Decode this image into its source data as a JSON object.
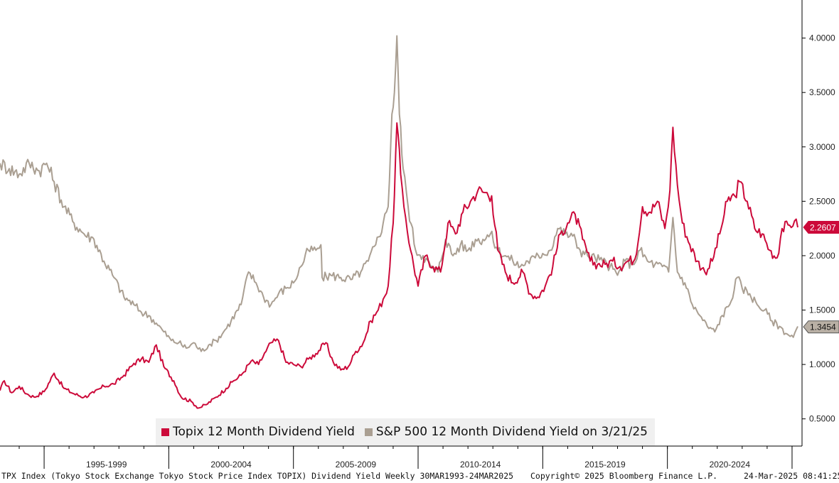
{
  "chart_data": {
    "type": "line",
    "ylim": [
      0.25,
      4.35
    ],
    "yticks": [
      "0.5000",
      "1.0000",
      "1.5000",
      "2.0000",
      "2.5000",
      "3.0000",
      "3.5000",
      "4.0000"
    ],
    "xlim": [
      1993.23,
      2025.4
    ],
    "x_groups": [
      {
        "label": "1995-1999",
        "start": 1995,
        "end": 2000
      },
      {
        "label": "2000-2004",
        "start": 2000,
        "end": 2005
      },
      {
        "label": "2005-2009",
        "start": 2005,
        "end": 2010
      },
      {
        "label": "2010-2014",
        "start": 2010,
        "end": 2015
      },
      {
        "label": "2015-2019",
        "start": 2015,
        "end": 2020
      },
      {
        "label": "2020-2024",
        "start": 2020,
        "end": 2025
      }
    ],
    "grid": false,
    "legend_position": "bottom-center",
    "series": [
      {
        "name": "Topix 12 Month Dividend Yield",
        "color": "#cc0a3a",
        "last_value_label": "2.2607",
        "points": [
          [
            1993.23,
            0.76
          ],
          [
            1993.4,
            0.85
          ],
          [
            1993.7,
            0.74
          ],
          [
            1994.0,
            0.8
          ],
          [
            1994.3,
            0.73
          ],
          [
            1994.6,
            0.7
          ],
          [
            1995.0,
            0.75
          ],
          [
            1995.4,
            0.92
          ],
          [
            1995.8,
            0.78
          ],
          [
            1996.2,
            0.73
          ],
          [
            1996.6,
            0.7
          ],
          [
            1997.0,
            0.74
          ],
          [
            1997.4,
            0.8
          ],
          [
            1997.8,
            0.82
          ],
          [
            1998.2,
            0.9
          ],
          [
            1998.6,
            1.01
          ],
          [
            1998.9,
            1.05
          ],
          [
            1999.2,
            1.02
          ],
          [
            1999.5,
            1.18
          ],
          [
            1999.8,
            0.98
          ],
          [
            2000.2,
            0.85
          ],
          [
            2000.5,
            0.7
          ],
          [
            2000.9,
            0.66
          ],
          [
            2001.2,
            0.6
          ],
          [
            2001.5,
            0.63
          ],
          [
            2001.9,
            0.7
          ],
          [
            2002.3,
            0.78
          ],
          [
            2002.6,
            0.85
          ],
          [
            2002.9,
            0.9
          ],
          [
            2003.3,
            1.03
          ],
          [
            2003.6,
            1.0
          ],
          [
            2003.9,
            1.12
          ],
          [
            2004.1,
            1.2
          ],
          [
            2004.4,
            1.22
          ],
          [
            2004.7,
            1.02
          ],
          [
            2005.0,
            1.0
          ],
          [
            2005.3,
            0.98
          ],
          [
            2005.6,
            1.05
          ],
          [
            2005.9,
            1.1
          ],
          [
            2006.3,
            1.2
          ],
          [
            2006.6,
            1.02
          ],
          [
            2006.9,
            0.95
          ],
          [
            2007.2,
            0.98
          ],
          [
            2007.5,
            1.12
          ],
          [
            2007.8,
            1.2
          ],
          [
            2008.1,
            1.4
          ],
          [
            2008.4,
            1.5
          ],
          [
            2008.6,
            1.6
          ],
          [
            2008.8,
            1.72
          ],
          [
            2009.0,
            2.3
          ],
          [
            2009.15,
            3.22
          ],
          [
            2009.3,
            2.75
          ],
          [
            2009.5,
            2.35
          ],
          [
            2009.7,
            2.05
          ],
          [
            2010.0,
            1.72
          ],
          [
            2010.3,
            2.0
          ],
          [
            2010.6,
            1.9
          ],
          [
            2010.9,
            1.85
          ],
          [
            2011.2,
            2.3
          ],
          [
            2011.5,
            2.2
          ],
          [
            2011.8,
            2.4
          ],
          [
            2012.1,
            2.5
          ],
          [
            2012.4,
            2.6
          ],
          [
            2012.7,
            2.58
          ],
          [
            2012.95,
            2.55
          ],
          [
            2013.2,
            2.05
          ],
          [
            2013.5,
            1.85
          ],
          [
            2013.8,
            1.75
          ],
          [
            2014.2,
            1.85
          ],
          [
            2014.5,
            1.65
          ],
          [
            2014.8,
            1.62
          ],
          [
            2015.1,
            1.72
          ],
          [
            2015.4,
            1.9
          ],
          [
            2015.7,
            2.2
          ],
          [
            2016.0,
            2.3
          ],
          [
            2016.3,
            2.38
          ],
          [
            2016.6,
            2.15
          ],
          [
            2016.9,
            1.95
          ],
          [
            2017.2,
            1.92
          ],
          [
            2017.5,
            1.92
          ],
          [
            2017.8,
            1.95
          ],
          [
            2018.1,
            1.9
          ],
          [
            2018.4,
            1.95
          ],
          [
            2018.7,
            1.97
          ],
          [
            2019.0,
            2.45
          ],
          [
            2019.3,
            2.4
          ],
          [
            2019.6,
            2.5
          ],
          [
            2019.9,
            2.25
          ],
          [
            2020.1,
            2.6
          ],
          [
            2020.22,
            3.18
          ],
          [
            2020.4,
            2.65
          ],
          [
            2020.6,
            2.3
          ],
          [
            2020.9,
            2.1
          ],
          [
            2021.2,
            1.95
          ],
          [
            2021.5,
            1.85
          ],
          [
            2021.8,
            1.95
          ],
          [
            2022.1,
            2.2
          ],
          [
            2022.4,
            2.5
          ],
          [
            2022.7,
            2.55
          ],
          [
            2022.9,
            2.68
          ],
          [
            2023.2,
            2.5
          ],
          [
            2023.5,
            2.25
          ],
          [
            2023.8,
            2.2
          ],
          [
            2024.1,
            2.05
          ],
          [
            2024.4,
            1.98
          ],
          [
            2024.6,
            2.25
          ],
          [
            2024.9,
            2.28
          ],
          [
            2025.1,
            2.32
          ],
          [
            2025.23,
            2.26
          ]
        ]
      },
      {
        "name": "S&P 500 12 Month Dividend Yield on 3/21/25",
        "color": "#aa9f92",
        "last_value_label": "1.3454",
        "points": [
          [
            1993.23,
            2.85
          ],
          [
            1993.6,
            2.8
          ],
          [
            1994.0,
            2.75
          ],
          [
            1994.4,
            2.85
          ],
          [
            1994.8,
            2.78
          ],
          [
            1995.1,
            2.85
          ],
          [
            1995.4,
            2.68
          ],
          [
            1995.8,
            2.45
          ],
          [
            1996.2,
            2.3
          ],
          [
            1996.6,
            2.2
          ],
          [
            1997.0,
            2.15
          ],
          [
            1997.4,
            1.95
          ],
          [
            1997.8,
            1.8
          ],
          [
            1998.2,
            1.62
          ],
          [
            1998.6,
            1.55
          ],
          [
            1998.9,
            1.48
          ],
          [
            1999.2,
            1.45
          ],
          [
            1999.5,
            1.38
          ],
          [
            1999.8,
            1.3
          ],
          [
            2000.1,
            1.22
          ],
          [
            2000.4,
            1.2
          ],
          [
            2000.7,
            1.15
          ],
          [
            2001.0,
            1.2
          ],
          [
            2001.3,
            1.12
          ],
          [
            2001.6,
            1.18
          ],
          [
            2001.9,
            1.22
          ],
          [
            2002.2,
            1.3
          ],
          [
            2002.5,
            1.4
          ],
          [
            2002.9,
            1.55
          ],
          [
            2003.2,
            1.85
          ],
          [
            2003.5,
            1.75
          ],
          [
            2003.8,
            1.62
          ],
          [
            2004.1,
            1.55
          ],
          [
            2004.4,
            1.65
          ],
          [
            2004.7,
            1.7
          ],
          [
            2005.0,
            1.75
          ],
          [
            2005.3,
            1.9
          ],
          [
            2005.6,
            2.05
          ],
          [
            2005.9,
            2.05
          ],
          [
            2006.1,
            2.1
          ],
          [
            2006.15,
            1.8
          ],
          [
            2006.5,
            1.82
          ],
          [
            2006.9,
            1.8
          ],
          [
            2007.3,
            1.78
          ],
          [
            2007.7,
            1.85
          ],
          [
            2008.0,
            1.95
          ],
          [
            2008.3,
            2.1
          ],
          [
            2008.6,
            2.3
          ],
          [
            2008.8,
            2.45
          ],
          [
            2008.95,
            3.3
          ],
          [
            2009.05,
            3.5
          ],
          [
            2009.15,
            4.02
          ],
          [
            2009.25,
            3.3
          ],
          [
            2009.4,
            2.8
          ],
          [
            2009.6,
            2.45
          ],
          [
            2009.9,
            2.05
          ],
          [
            2010.2,
            2.0
          ],
          [
            2010.5,
            1.9
          ],
          [
            2010.8,
            1.85
          ],
          [
            2011.1,
            2.15
          ],
          [
            2011.4,
            2.0
          ],
          [
            2011.7,
            2.1
          ],
          [
            2012.0,
            2.05
          ],
          [
            2012.3,
            2.15
          ],
          [
            2012.6,
            2.15
          ],
          [
            2012.9,
            2.2
          ],
          [
            2013.2,
            2.05
          ],
          [
            2013.5,
            2.0
          ],
          [
            2013.8,
            1.95
          ],
          [
            2014.1,
            1.9
          ],
          [
            2014.4,
            1.95
          ],
          [
            2014.7,
            1.98
          ],
          [
            2015.0,
            2.02
          ],
          [
            2015.3,
            2.05
          ],
          [
            2015.6,
            2.25
          ],
          [
            2015.9,
            2.2
          ],
          [
            2016.2,
            2.18
          ],
          [
            2016.5,
            2.05
          ],
          [
            2016.8,
            2.0
          ],
          [
            2017.1,
            1.98
          ],
          [
            2017.4,
            1.95
          ],
          [
            2017.7,
            1.9
          ],
          [
            2018.0,
            1.82
          ],
          [
            2018.3,
            1.95
          ],
          [
            2018.6,
            1.92
          ],
          [
            2018.9,
            2.05
          ],
          [
            2019.2,
            1.95
          ],
          [
            2019.5,
            1.92
          ],
          [
            2019.8,
            1.9
          ],
          [
            2020.05,
            1.85
          ],
          [
            2020.22,
            2.35
          ],
          [
            2020.4,
            1.85
          ],
          [
            2020.7,
            1.75
          ],
          [
            2021.0,
            1.55
          ],
          [
            2021.3,
            1.45
          ],
          [
            2021.6,
            1.35
          ],
          [
            2021.9,
            1.3
          ],
          [
            2022.2,
            1.45
          ],
          [
            2022.5,
            1.55
          ],
          [
            2022.8,
            1.8
          ],
          [
            2023.0,
            1.7
          ],
          [
            2023.3,
            1.65
          ],
          [
            2023.6,
            1.55
          ],
          [
            2023.9,
            1.5
          ],
          [
            2024.2,
            1.4
          ],
          [
            2024.5,
            1.35
          ],
          [
            2024.8,
            1.28
          ],
          [
            2025.05,
            1.25
          ],
          [
            2025.23,
            1.35
          ]
        ]
      }
    ]
  },
  "footer": {
    "left": "TPX Index (Tokyo Stock Exchange Tokyo Stock Price Index TOPIX) Dividend Yield  Weekly 30MAR1993-24MAR2025",
    "center": "Copyright© 2025 Bloomberg Finance L.P.",
    "right": "24-Mar-2025 08:41:25"
  }
}
